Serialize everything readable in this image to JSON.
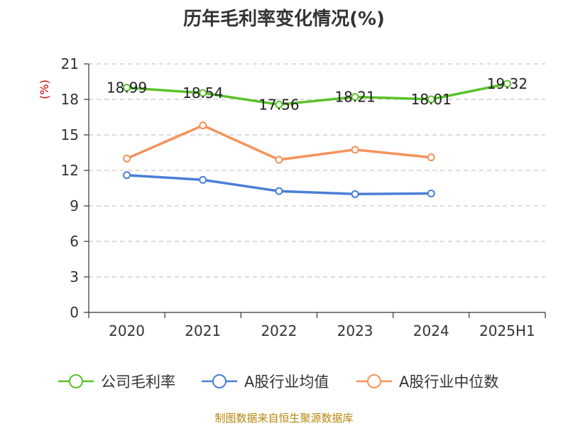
{
  "source_note": "制图数据来自恒生聚源数据库",
  "chart_data": {
    "type": "line",
    "title": "历年毛利率变化情况(%)",
    "unit_label": "(%)",
    "categories": [
      "2020",
      "2021",
      "2022",
      "2023",
      "2024",
      "2025H1"
    ],
    "ylim": [
      0,
      21
    ],
    "yticks": [
      0,
      3,
      6,
      9,
      12,
      15,
      18,
      21
    ],
    "grid": true,
    "legend_position": "bottom",
    "series": [
      {
        "name": "公司毛利率",
        "color": "#5ac22a",
        "values": [
          18.99,
          18.54,
          17.56,
          18.21,
          18.01,
          19.32
        ],
        "data_labels": [
          "18.99",
          "18.54",
          "17.56",
          "18.21",
          "18.01",
          "19.32"
        ]
      },
      {
        "name": "A股行业均值",
        "color": "#4a7fd6",
        "values": [
          11.6,
          11.2,
          10.25,
          10.0,
          10.05,
          null
        ]
      },
      {
        "name": "A股行业中位数",
        "color": "#f5925a",
        "values": [
          13.0,
          15.8,
          12.9,
          13.75,
          13.1,
          null
        ]
      }
    ]
  }
}
